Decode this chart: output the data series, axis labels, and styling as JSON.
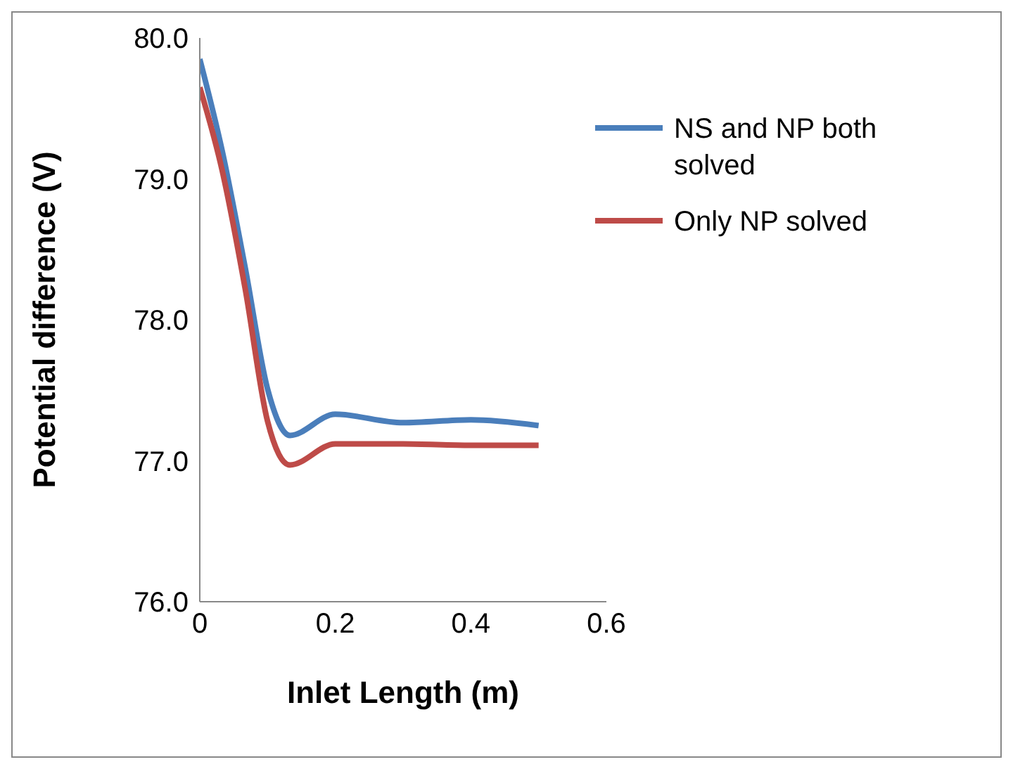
{
  "chart_data": {
    "type": "line",
    "xlabel": "Inlet Length (m)",
    "ylabel": "Potential difference (V)",
    "xlim": [
      0,
      0.6
    ],
    "xticks": [
      0,
      0.2,
      0.4,
      0.6
    ],
    "ylim": [
      76,
      80
    ],
    "yticks": [
      {
        "value": 76,
        "label": "76.0"
      },
      {
        "value": 77,
        "label": "77.0"
      },
      {
        "value": 78,
        "label": "78.0"
      },
      {
        "value": 79,
        "label": "79.0"
      },
      {
        "value": 80,
        "label": "80.0"
      }
    ],
    "grid": false,
    "legend": "top right",
    "marker": "none",
    "line_style": "solid",
    "series": [
      {
        "name": "NS and NP both solved",
        "color": "#4a7ebb",
        "x": [
          0,
          0.033,
          0.067,
          0.1,
          0.133,
          0.2,
          0.3,
          0.4,
          0.5
        ],
        "values": [
          79.85,
          79.2,
          78.37,
          77.51,
          77.18,
          77.33,
          77.27,
          77.29,
          77.25
        ]
      },
      {
        "name": "Only NP solved",
        "color": "#be4b48",
        "x": [
          0,
          0.033,
          0.067,
          0.1,
          0.133,
          0.2,
          0.3,
          0.4,
          0.5
        ],
        "values": [
          79.65,
          79.06,
          78.22,
          77.28,
          76.97,
          77.12,
          77.12,
          77.11,
          77.11
        ]
      }
    ]
  }
}
